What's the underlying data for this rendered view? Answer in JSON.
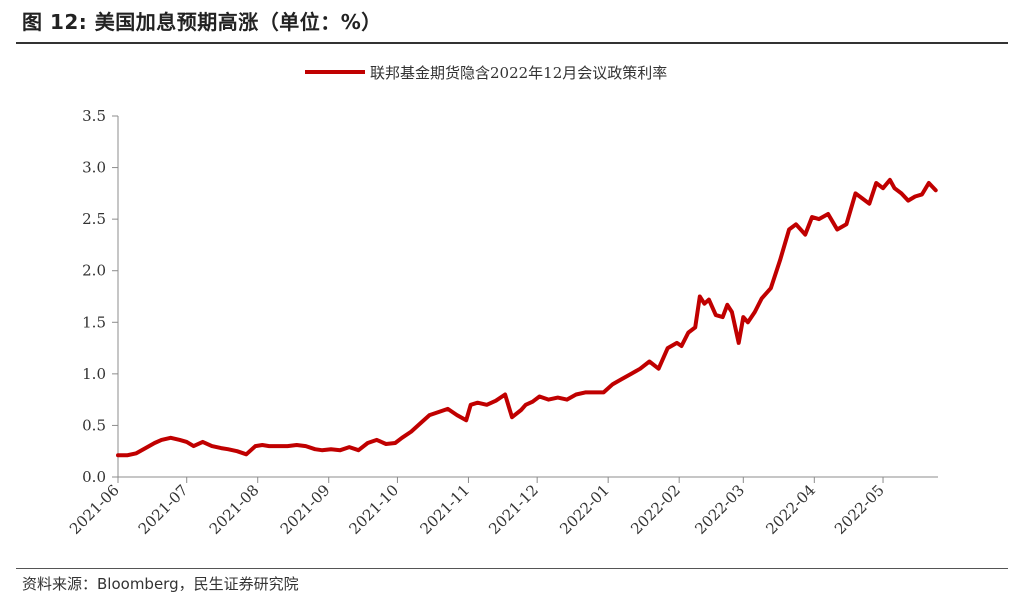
{
  "figure": {
    "title": "图 12: 美国加息预期高涨（单位：%）",
    "source": "资料来源：Bloomberg，民生证券研究院"
  },
  "colors": {
    "series": "#c00000",
    "axis": "#8c8c8c",
    "text": "#333333"
  },
  "chart_data": {
    "type": "line",
    "title": "",
    "xlabel": "",
    "ylabel": "",
    "ylim": [
      0,
      3.5
    ],
    "yticks": [
      "0.0",
      "0.5",
      "1.0",
      "1.5",
      "2.0",
      "2.5",
      "3.0",
      "3.5"
    ],
    "xticks": [
      "2021-06",
      "2021-07",
      "2021-08",
      "2021-09",
      "2021-10",
      "2021-11",
      "2021-12",
      "2022-01",
      "2022-02",
      "2022-03",
      "2022-04",
      "2022-05"
    ],
    "grid": false,
    "legend": "top-center",
    "series": [
      {
        "name": "联邦基金期货隐含2022年12月会议政策利率",
        "x": [
          "2021-06-01",
          "2021-06-05",
          "2021-06-09",
          "2021-06-13",
          "2021-06-17",
          "2021-06-20",
          "2021-06-24",
          "2021-06-28",
          "2021-07-01",
          "2021-07-04",
          "2021-07-08",
          "2021-07-12",
          "2021-07-16",
          "2021-07-19",
          "2021-07-23",
          "2021-07-27",
          "2021-07-31",
          "2021-08-03",
          "2021-08-06",
          "2021-08-10",
          "2021-08-14",
          "2021-08-18",
          "2021-08-22",
          "2021-08-26",
          "2021-08-29",
          "2021-09-02",
          "2021-09-06",
          "2021-09-10",
          "2021-09-14",
          "2021-09-18",
          "2021-09-22",
          "2021-09-26",
          "2021-09-30",
          "2021-10-03",
          "2021-10-07",
          "2021-10-11",
          "2021-10-15",
          "2021-10-19",
          "2021-10-23",
          "2021-10-27",
          "2021-10-31",
          "2021-11-02",
          "2021-11-05",
          "2021-11-09",
          "2021-11-13",
          "2021-11-17",
          "2021-11-20",
          "2021-11-24",
          "2021-11-26",
          "2021-11-29",
          "2021-12-02",
          "2021-12-06",
          "2021-12-10",
          "2021-12-14",
          "2021-12-18",
          "2021-12-22",
          "2021-12-26",
          "2021-12-30",
          "2022-01-03",
          "2022-01-07",
          "2022-01-11",
          "2022-01-15",
          "2022-01-19",
          "2022-01-23",
          "2022-01-27",
          "2022-01-31",
          "2022-02-02",
          "2022-02-05",
          "2022-02-08",
          "2022-02-10",
          "2022-02-12",
          "2022-02-14",
          "2022-02-17",
          "2022-02-20",
          "2022-02-22",
          "2022-02-24",
          "2022-02-27",
          "2022-03-01",
          "2022-03-03",
          "2022-03-06",
          "2022-03-09",
          "2022-03-13",
          "2022-03-17",
          "2022-03-21",
          "2022-03-24",
          "2022-03-28",
          "2022-03-31",
          "2022-04-03",
          "2022-04-07",
          "2022-04-11",
          "2022-04-15",
          "2022-04-19",
          "2022-04-22",
          "2022-04-25",
          "2022-04-28",
          "2022-05-01",
          "2022-05-04",
          "2022-05-06",
          "2022-05-09",
          "2022-05-12",
          "2022-05-15",
          "2022-05-18",
          "2022-05-21",
          "2022-05-24"
        ],
        "values": [
          0.21,
          0.21,
          0.23,
          0.28,
          0.33,
          0.36,
          0.38,
          0.36,
          0.34,
          0.3,
          0.34,
          0.3,
          0.28,
          0.27,
          0.25,
          0.22,
          0.3,
          0.31,
          0.3,
          0.3,
          0.3,
          0.31,
          0.3,
          0.27,
          0.26,
          0.27,
          0.26,
          0.29,
          0.26,
          0.33,
          0.36,
          0.32,
          0.33,
          0.38,
          0.44,
          0.52,
          0.6,
          0.63,
          0.66,
          0.6,
          0.55,
          0.7,
          0.72,
          0.7,
          0.74,
          0.8,
          0.58,
          0.65,
          0.7,
          0.73,
          0.78,
          0.75,
          0.77,
          0.75,
          0.8,
          0.82,
          0.82,
          0.82,
          0.9,
          0.95,
          1.0,
          1.05,
          1.12,
          1.05,
          1.25,
          1.3,
          1.27,
          1.4,
          1.45,
          1.75,
          1.68,
          1.72,
          1.57,
          1.55,
          1.67,
          1.6,
          1.3,
          1.55,
          1.5,
          1.6,
          1.73,
          1.83,
          2.1,
          2.4,
          2.45,
          2.35,
          2.52,
          2.5,
          2.55,
          2.4,
          2.45,
          2.75,
          2.7,
          2.65,
          2.85,
          2.8,
          2.88,
          2.8,
          2.75,
          2.68,
          2.72,
          2.74,
          2.85,
          2.78
        ]
      }
    ]
  }
}
